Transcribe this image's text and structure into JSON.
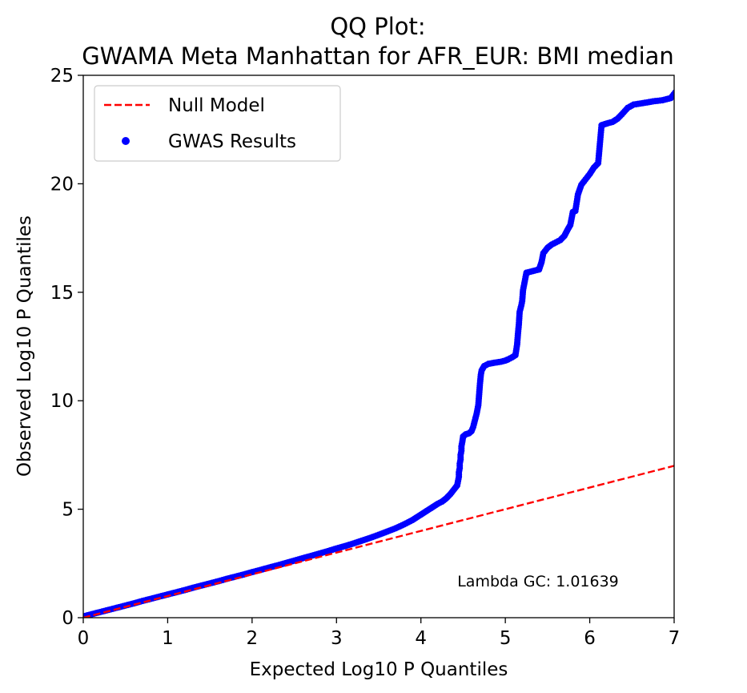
{
  "chart_data": {
    "type": "scatter",
    "title_line1": "QQ Plot:",
    "title_line2": "GWAMA Meta Manhattan for AFR_EUR: BMI median",
    "xlabel": "Expected Log10 P Quantiles",
    "ylabel": "Observed Log10 P Quantiles",
    "xlim": [
      0,
      7
    ],
    "ylim": [
      0,
      25
    ],
    "xticks": [
      "0",
      "1",
      "2",
      "3",
      "4",
      "5",
      "6",
      "7"
    ],
    "yticks": [
      "0",
      "5",
      "10",
      "15",
      "20",
      "25"
    ],
    "grid": false,
    "legend_position": "top-left",
    "annotation": "Lambda GC: 1.01639",
    "null_model": {
      "name": "Null Model",
      "color": "#ff0000",
      "style": "dashed",
      "x": [
        0,
        7
      ],
      "y": [
        0,
        7
      ]
    },
    "series": [
      {
        "name": "GWAS Results",
        "color": "#0000ff",
        "points": [
          [
            0.0,
            0.06
          ],
          [
            0.1,
            0.16
          ],
          [
            0.2,
            0.26
          ],
          [
            0.3,
            0.36
          ],
          [
            0.4,
            0.46
          ],
          [
            0.5,
            0.56
          ],
          [
            0.6,
            0.66
          ],
          [
            0.7,
            0.77
          ],
          [
            0.8,
            0.87
          ],
          [
            0.9,
            0.97
          ],
          [
            1.0,
            1.07
          ],
          [
            1.1,
            1.17
          ],
          [
            1.2,
            1.27
          ],
          [
            1.3,
            1.38
          ],
          [
            1.4,
            1.48
          ],
          [
            1.5,
            1.58
          ],
          [
            1.6,
            1.68
          ],
          [
            1.7,
            1.79
          ],
          [
            1.8,
            1.89
          ],
          [
            1.9,
            1.99
          ],
          [
            2.0,
            2.1
          ],
          [
            2.1,
            2.2
          ],
          [
            2.2,
            2.31
          ],
          [
            2.3,
            2.41
          ],
          [
            2.4,
            2.52
          ],
          [
            2.5,
            2.63
          ],
          [
            2.6,
            2.74
          ],
          [
            2.7,
            2.85
          ],
          [
            2.8,
            2.96
          ],
          [
            2.9,
            3.07
          ],
          [
            3.0,
            3.19
          ],
          [
            3.1,
            3.3
          ],
          [
            3.2,
            3.42
          ],
          [
            3.3,
            3.55
          ],
          [
            3.4,
            3.68
          ],
          [
            3.5,
            3.82
          ],
          [
            3.6,
            3.97
          ],
          [
            3.7,
            4.12
          ],
          [
            3.8,
            4.3
          ],
          [
            3.9,
            4.5
          ],
          [
            4.0,
            4.75
          ],
          [
            4.1,
            5.0
          ],
          [
            4.2,
            5.25
          ],
          [
            4.25,
            5.35
          ],
          [
            4.3,
            5.5
          ],
          [
            4.35,
            5.7
          ],
          [
            4.38,
            5.85
          ],
          [
            4.41,
            6.0
          ],
          [
            4.43,
            6.1
          ],
          [
            4.44,
            6.3
          ],
          [
            4.45,
            6.5
          ],
          [
            4.45,
            6.7
          ],
          [
            4.46,
            6.9
          ],
          [
            4.46,
            7.1
          ],
          [
            4.47,
            7.3
          ],
          [
            4.47,
            7.5
          ],
          [
            4.48,
            7.7
          ],
          [
            4.48,
            7.9
          ],
          [
            4.49,
            8.1
          ],
          [
            4.5,
            8.35
          ],
          [
            4.53,
            8.45
          ],
          [
            4.57,
            8.5
          ],
          [
            4.6,
            8.6
          ],
          [
            4.62,
            8.8
          ],
          [
            4.64,
            9.1
          ],
          [
            4.66,
            9.4
          ],
          [
            4.68,
            9.8
          ],
          [
            4.69,
            10.3
          ],
          [
            4.7,
            10.8
          ],
          [
            4.71,
            11.2
          ],
          [
            4.72,
            11.4
          ],
          [
            4.75,
            11.6
          ],
          [
            4.8,
            11.7
          ],
          [
            4.87,
            11.75
          ],
          [
            4.95,
            11.8
          ],
          [
            5.0,
            11.85
          ],
          [
            5.03,
            11.9
          ],
          [
            5.08,
            12.0
          ],
          [
            5.12,
            12.1
          ],
          [
            5.14,
            12.6
          ],
          [
            5.15,
            13.1
          ],
          [
            5.16,
            13.5
          ],
          [
            5.17,
            14.1
          ],
          [
            5.19,
            14.4
          ],
          [
            5.2,
            14.6
          ],
          [
            5.21,
            15.1
          ],
          [
            5.23,
            15.5
          ],
          [
            5.25,
            15.9
          ],
          [
            5.3,
            15.95
          ],
          [
            5.35,
            16.0
          ],
          [
            5.4,
            16.05
          ],
          [
            5.43,
            16.4
          ],
          [
            5.45,
            16.8
          ],
          [
            5.5,
            17.05
          ],
          [
            5.55,
            17.2
          ],
          [
            5.6,
            17.3
          ],
          [
            5.65,
            17.4
          ],
          [
            5.7,
            17.6
          ],
          [
            5.74,
            17.9
          ],
          [
            5.77,
            18.1
          ],
          [
            5.8,
            18.7
          ],
          [
            5.83,
            18.75
          ],
          [
            5.86,
            19.5
          ],
          [
            5.9,
            19.95
          ],
          [
            5.95,
            20.2
          ],
          [
            6.0,
            20.45
          ],
          [
            6.05,
            20.75
          ],
          [
            6.1,
            20.95
          ],
          [
            6.14,
            22.7
          ],
          [
            6.18,
            22.75
          ],
          [
            6.22,
            22.8
          ],
          [
            6.27,
            22.85
          ],
          [
            6.33,
            23.0
          ],
          [
            6.38,
            23.2
          ],
          [
            6.45,
            23.5
          ],
          [
            6.52,
            23.65
          ],
          [
            6.6,
            23.7
          ],
          [
            6.68,
            23.75
          ],
          [
            6.75,
            23.8
          ],
          [
            6.86,
            23.85
          ],
          [
            6.96,
            23.95
          ],
          [
            7.01,
            24.2
          ]
        ]
      }
    ]
  }
}
